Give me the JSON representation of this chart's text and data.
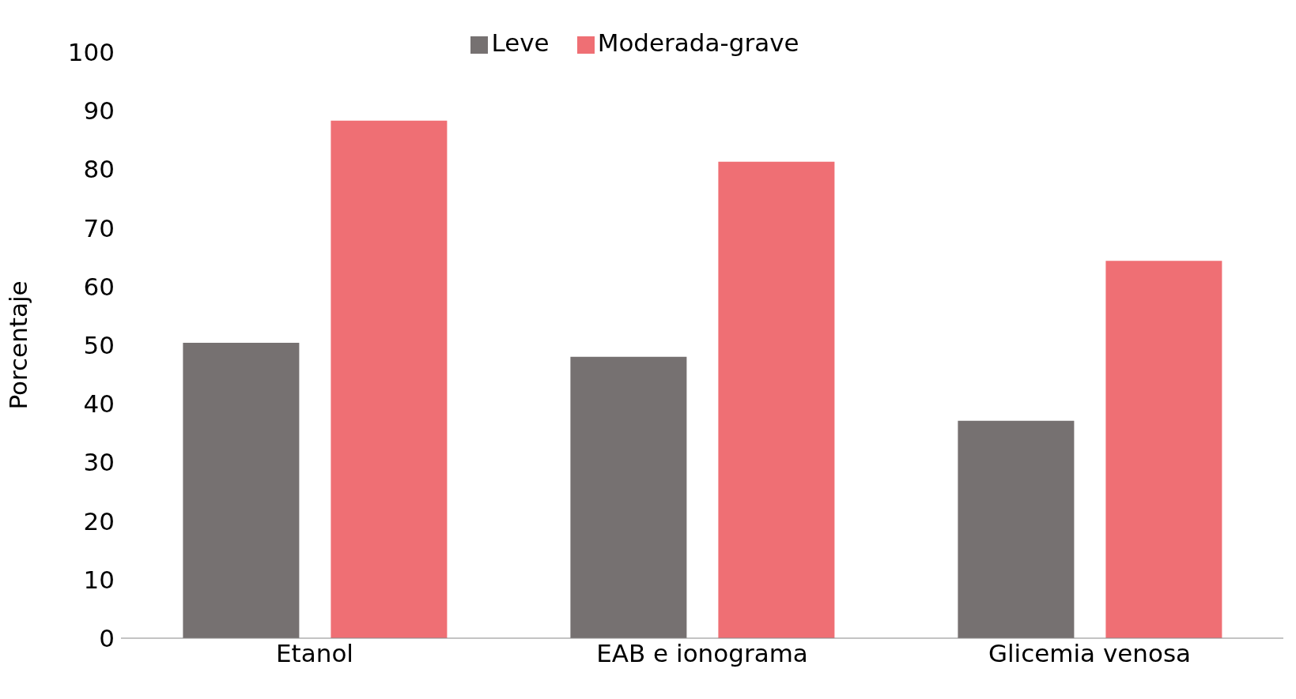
{
  "chart_data": {
    "type": "bar",
    "ylabel": "Porcentaje",
    "categories": [
      "Etanol",
      "EAB e ionograma",
      "Glicemia venosa"
    ],
    "series": [
      {
        "name": "Leve",
        "color": "#767171",
        "values": [
          50.4,
          48.0,
          37.1
        ]
      },
      {
        "name": "Moderada-grave",
        "color": "#ef6f74",
        "values": [
          88.3,
          81.3,
          64.4
        ]
      }
    ],
    "ylim": [
      0,
      100
    ],
    "yticks": [
      0,
      10,
      20,
      30,
      40,
      50,
      60,
      70,
      80,
      90,
      100
    ],
    "grid": false,
    "legend": "top"
  }
}
